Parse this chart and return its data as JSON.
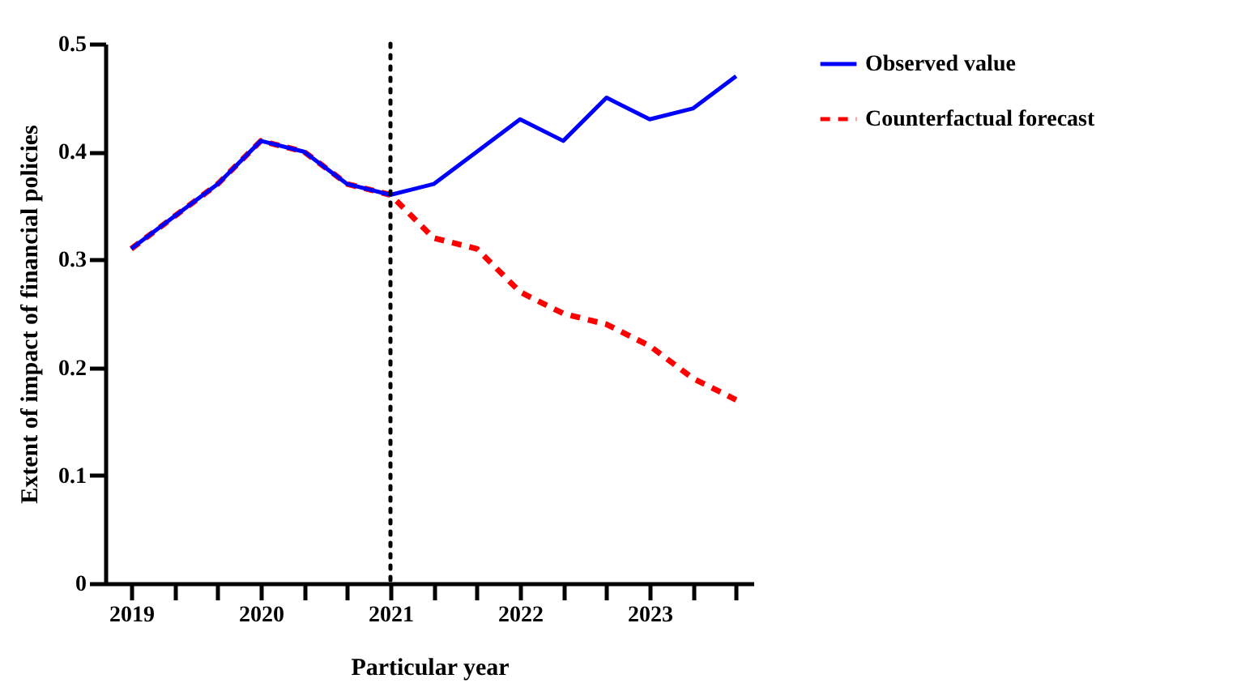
{
  "chart_data": {
    "type": "line",
    "xlabel": "Particular year",
    "ylabel": "Extent of impact of financial policies",
    "x": [
      2019,
      2019.333,
      2019.667,
      2020,
      2020.333,
      2020.667,
      2021,
      2021.333,
      2021.667,
      2022,
      2022.333,
      2022.667,
      2023,
      2023.333,
      2023.667
    ],
    "series": [
      {
        "name": "Observed value",
        "color": "#0000ff",
        "line_style": "solid",
        "values": [
          0.31,
          0.34,
          0.37,
          0.41,
          0.4,
          0.37,
          0.36,
          0.37,
          0.4,
          0.43,
          0.41,
          0.45,
          0.43,
          0.44,
          0.47
        ]
      },
      {
        "name": "Counterfactual forecast",
        "color": "#ff0000",
        "line_style": "dashed",
        "values": [
          0.31,
          0.34,
          0.37,
          0.41,
          0.4,
          0.37,
          0.36,
          0.32,
          0.31,
          0.27,
          0.25,
          0.24,
          0.22,
          0.19,
          0.17
        ]
      }
    ],
    "xlim": [
      2018.8,
      2023.8
    ],
    "xticks": [
      2019,
      {
        "value": 2019.333,
        "label": null
      },
      {
        "value": 2019.667,
        "label": null
      },
      2020,
      {
        "value": 2020.333,
        "label": null
      },
      {
        "value": 2020.667,
        "label": null
      },
      2021,
      {
        "value": 2021.333,
        "label": null
      },
      {
        "value": 2021.667,
        "label": null
      },
      2022,
      {
        "value": 2022.333,
        "label": null
      },
      {
        "value": 2022.667,
        "label": null
      },
      2023,
      {
        "value": 2023.333,
        "label": null
      },
      {
        "value": 2023.667,
        "label": null
      }
    ],
    "ylim": [
      0,
      0.5
    ],
    "yticks": [
      0.0,
      0.1,
      0.2,
      0.3,
      0.4,
      0.5
    ],
    "ref_lines": [
      {
        "axis": "x",
        "value": 2021,
        "color": "#000000",
        "line_style": "dotted"
      }
    ],
    "grid": false,
    "legend": "top right",
    "marker": "none"
  }
}
